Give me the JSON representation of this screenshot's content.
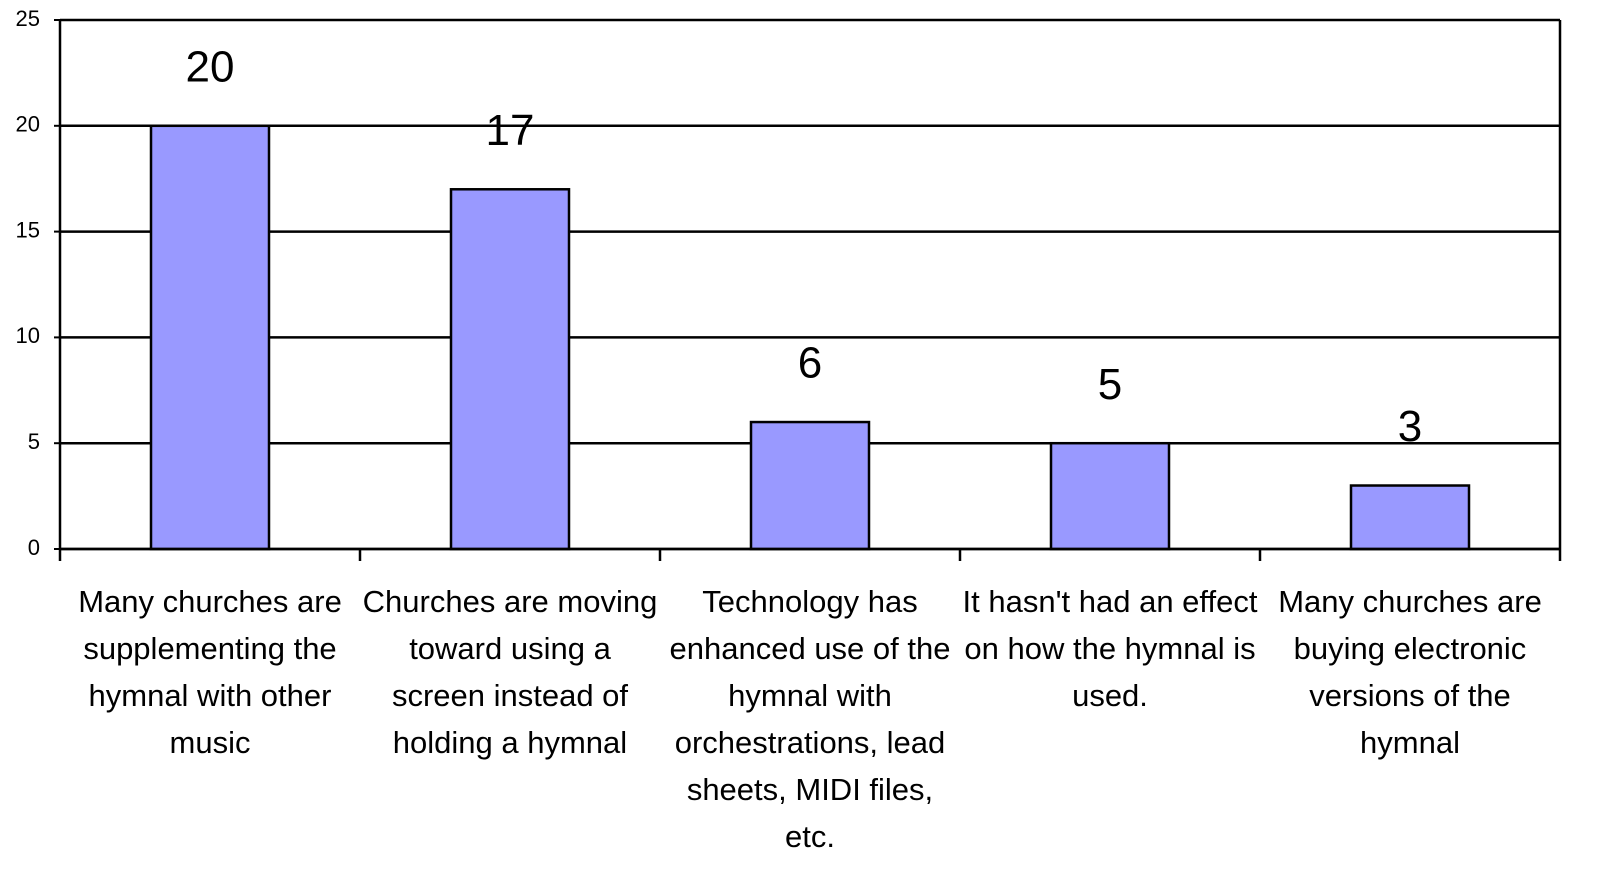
{
  "chart_data": {
    "type": "bar",
    "categories": [
      "Many churches are supplementing the hymnal with other music",
      "Churches are moving toward using a screen instead of holding a hymnal",
      "Technology has enhanced use of the hymnal with orchestrations, lead sheets, MIDI files, etc.",
      "It hasn't had an effect on how the hymnal is used.",
      "Many churches are buying electronic versions of the hymnal"
    ],
    "values": [
      20,
      17,
      6,
      5,
      3
    ],
    "color": "#9999ff",
    "ylim": [
      0,
      25
    ],
    "yticks": [
      0,
      5,
      10,
      15,
      20,
      25
    ],
    "grid": true
  }
}
